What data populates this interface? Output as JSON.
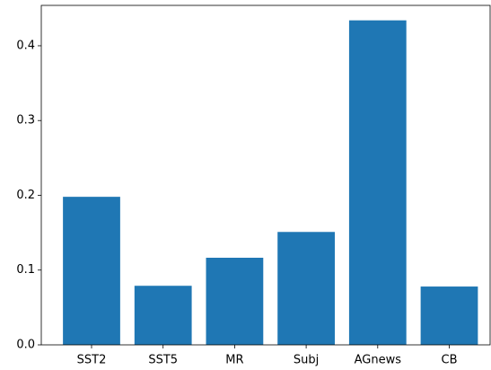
{
  "chart_data": {
    "type": "bar",
    "categories": [
      "SST2",
      "SST5",
      "MR",
      "Subj",
      "AGnews",
      "CB"
    ],
    "values": [
      0.198,
      0.079,
      0.1165,
      0.151,
      0.434,
      0.078
    ],
    "color": "#1f77b4",
    "ylim": [
      0,
      0.454
    ],
    "yticks": [
      {
        "value": 0,
        "label": "0.0"
      },
      0.1,
      0.2,
      0.3,
      0.4
    ]
  }
}
